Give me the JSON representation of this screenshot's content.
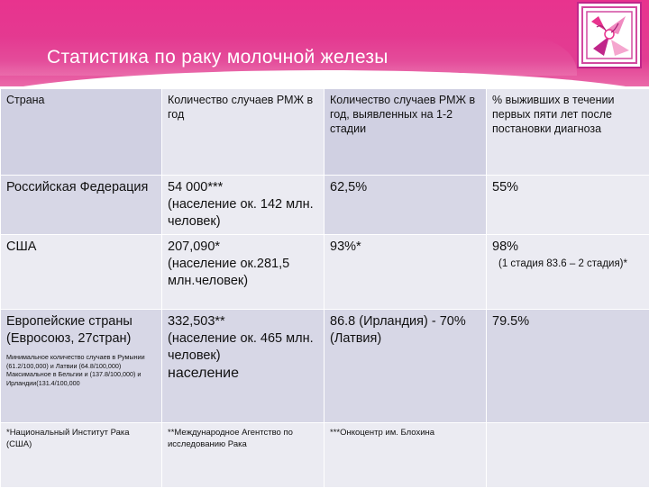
{
  "header": {
    "title": "Статистика по раку молочной железы",
    "logo_icon": "hands-logo-icon"
  },
  "colors": {
    "header_pink": "#e8338e",
    "row_lavender": "#d7d7e6",
    "row_light": "#ebebf2"
  },
  "table": {
    "columns": [
      "Страна",
      "Количество случаев РМЖ в год",
      "Количество случаев РМЖ в год, выявленных на 1-2 стадии",
      "% выживших в течении первых пяти лет после постановки диагноза"
    ],
    "rows": [
      {
        "country": "Российская Федерация",
        "cases": "54 000***",
        "cases_note": "(население ок. 142 млн. человек)",
        "early": "62,5%",
        "survival": "55%"
      },
      {
        "country": "США",
        "cases": "207,090*",
        "cases_note": "(население ок.281,5 млн.человек)",
        "early": "93%*",
        "survival": "98%",
        "survival_note": "(1 стадия 83.6 – 2 стадия)*"
      },
      {
        "country": "Европейские страны (Евросоюз, 27стран)",
        "country_note": "Минимальное количество случаев в Румынии (61.2/100,000) и Латвии (64.8/100,000) Максимальное в Бельгии и (137.8/100,000) и Ирландии(131.4/100,000",
        "cases": "332,503**",
        "cases_note": "(население ок. 465 млн. человек)",
        "cases_extra": "население",
        "early": "86.8 (Ирландия) - 70% (Латвия)",
        "survival": "79.5%"
      }
    ],
    "footnotes": [
      "*Национальный Институт Рака (США)",
      "**Международное Агентство по исследованию Рака",
      "***Онкоцентр им. Блохина",
      ""
    ]
  }
}
